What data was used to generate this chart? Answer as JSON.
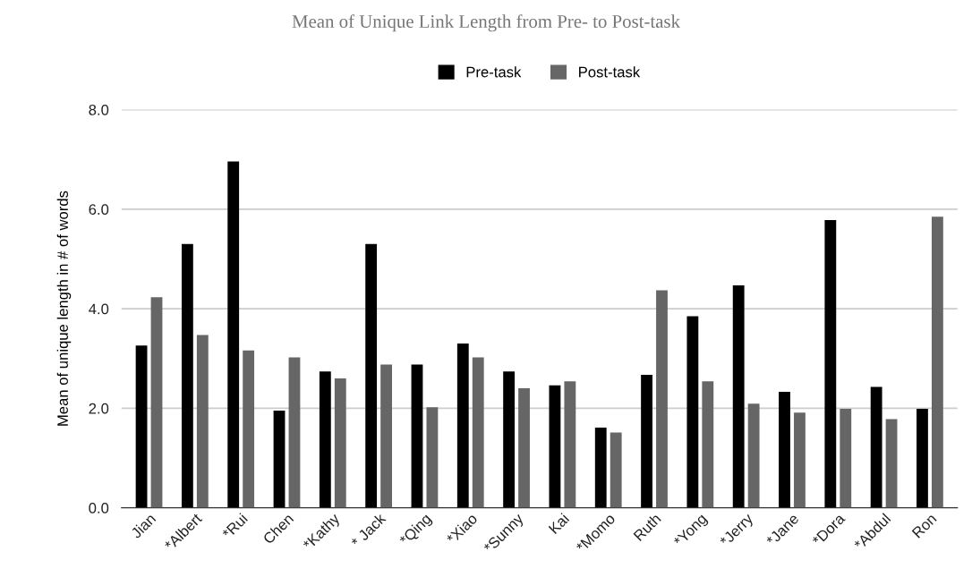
{
  "chart_data": {
    "type": "bar",
    "title": "Mean of Unique Link Length from Pre- to Post-task",
    "ylabel": "Mean of unique length in # of words",
    "categories": [
      "Jian",
      "*Albert",
      "*Rui",
      "Chen",
      "*Kathy",
      "* Jack",
      "*Qing",
      "*Xiao",
      "*Sunny",
      "Kai",
      "*Momo",
      "Ruth",
      "*Yong",
      "*Jerry",
      "*Jane",
      "*Dora",
      "*Abdul",
      "Ron"
    ],
    "series": [
      {
        "name": "Pre-task",
        "color": "#000000",
        "values": [
          3.26,
          5.3,
          6.96,
          1.95,
          2.74,
          5.3,
          2.88,
          3.3,
          2.74,
          2.46,
          1.61,
          2.67,
          3.85,
          4.47,
          2.33,
          5.78,
          2.43,
          1.99
        ]
      },
      {
        "name": "Post-task",
        "color": "#666666",
        "values": [
          4.23,
          3.47,
          3.16,
          3.02,
          2.6,
          2.88,
          2.02,
          3.02,
          2.4,
          2.54,
          1.51,
          4.37,
          2.54,
          2.09,
          1.91,
          1.99,
          1.78,
          5.85
        ]
      }
    ],
    "ylim": [
      0,
      8
    ],
    "yticks": [
      {
        "value": 0,
        "label": "0.0"
      },
      {
        "value": 2,
        "label": "2.0"
      },
      {
        "value": 4,
        "label": "4.0"
      },
      {
        "value": 6,
        "label": "6.0"
      },
      {
        "value": 8,
        "label": "8.0"
      }
    ],
    "grid": "y",
    "legend": "top"
  }
}
